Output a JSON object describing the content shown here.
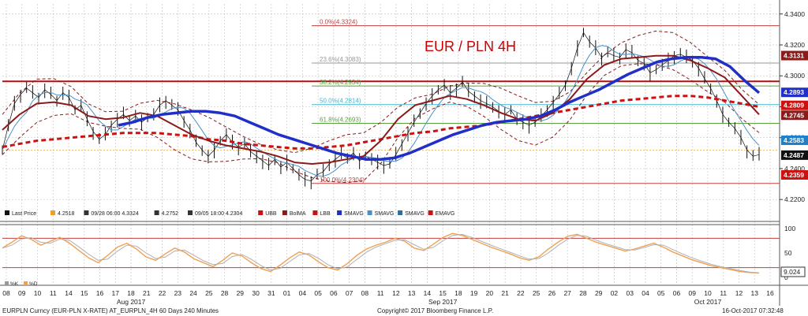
{
  "chart_data": {
    "type": "line",
    "title": "EUR / PLN 4H",
    "instrument_footer": "EURPLN Curncy (EUR-PLN X-RATE) AT_EURPLN_4H 60 Days 240 Minutes",
    "copyright": "Copyright© 2017 Bloomberg Finance L.P.",
    "timestamp": "16-Oct-2017 07:32:48",
    "colors": {
      "title": "#cc0000",
      "sma_blue": "#1f2fc7",
      "bollinger_ma": "#8b1a1a",
      "ema_dashed": "#cc1111",
      "price": "#111111",
      "thin_blue_sma": "#4a90c8",
      "fib_red": "#c04040",
      "fib_green": "#5aa040",
      "fib_cyan": "#40b8d0",
      "osc_orange": "#f0a050"
    },
    "x_axis": {
      "days": [
        "08",
        "09",
        "10",
        "11",
        "14",
        "15",
        "16",
        "17",
        "18",
        "21",
        "22",
        "23",
        "24",
        "25",
        "28",
        "29",
        "30",
        "31",
        "01",
        "04",
        "05",
        "06",
        "07",
        "08",
        "11",
        "12",
        "13",
        "14",
        "15",
        "18",
        "19",
        "20",
        "21",
        "22",
        "25",
        "26",
        "27",
        "28",
        "29",
        "02",
        "03",
        "04",
        "05",
        "06",
        "09",
        "10",
        "11",
        "12",
        "13",
        "16"
      ],
      "months": [
        {
          "label": "Aug 2017",
          "day_index": 8
        },
        {
          "label": "Sep 2017",
          "day_index": 28
        },
        {
          "label": "Oct 2017",
          "day_index": 45
        }
      ]
    },
    "y_axis": {
      "ticks": [
        4.34,
        4.32,
        4.3,
        4.28,
        4.26,
        4.24,
        4.22
      ],
      "ylim": [
        4.2155,
        4.3465
      ]
    },
    "price_tags": [
      {
        "value": 4.3131,
        "label": "4.3131",
        "bg": "#8b1a1a"
      },
      {
        "value": 4.2893,
        "label": "4.2893",
        "bg": "#1f2fc7"
      },
      {
        "value": 4.2809,
        "label": "4.2809",
        "bg": "#cc1111"
      },
      {
        "value": 4.2745,
        "label": "4.2745",
        "bg": "#8b1a1a"
      },
      {
        "value": 4.2583,
        "label": "4.2583",
        "bg": "#1f7fc7"
      },
      {
        "value": 4.2487,
        "label": "4.2487",
        "bg": "#111111"
      },
      {
        "value": 4.2359,
        "label": "4.2359",
        "bg": "#cc1111"
      }
    ],
    "fib_levels": [
      {
        "label": "0.0%(4.3324)",
        "value": 4.3324,
        "color": "#c04040"
      },
      {
        "label": "23.6%(4.3083)",
        "value": 4.3083,
        "color": "#999999"
      },
      {
        "label": "38.2%(4.2934)",
        "value": 4.2934,
        "color": "#5aa040"
      },
      {
        "label": "50.0%(4.2814)",
        "value": 4.2814,
        "color": "#40b8d0"
      },
      {
        "label": "61.8%(4.2693)",
        "value": 4.2693,
        "color": "#5aa040"
      },
      {
        "label": "100.0%(4.2304)",
        "value": 4.2304,
        "color": "#c04040"
      }
    ],
    "resistance_line": 4.2964,
    "legend": [
      {
        "label": "Last Price",
        "color": "#111111"
      },
      {
        "label": "4.2518",
        "color": "#f0a020"
      },
      {
        "label": "09/28 06:00 4.3324",
        "color": "#333333"
      },
      {
        "label": "4.2752",
        "color": "#333333"
      },
      {
        "label": "09/05 18:00 4.2304",
        "color": "#333333"
      },
      {
        "label": "UBB",
        "color": "#cc1111"
      },
      {
        "label": "BolMA",
        "color": "#8b1a1a"
      },
      {
        "label": "LBB",
        "color": "#cc1111"
      },
      {
        "label": "SMAVG",
        "color": "#1f2fc7"
      },
      {
        "label": "SMAVG",
        "color": "#4a90c8"
      },
      {
        "label": "SMAVG",
        "color": "#2a6fa0"
      },
      {
        "label": "EMAVG",
        "color": "#cc1111"
      }
    ],
    "price_series": [
      4.252,
      4.268,
      4.282,
      4.288,
      4.292,
      4.289,
      4.286,
      4.291,
      4.288,
      4.284,
      4.289,
      4.286,
      4.278,
      4.281,
      4.272,
      4.264,
      4.259,
      4.262,
      4.268,
      4.272,
      4.275,
      4.271,
      4.274,
      4.27,
      4.273,
      4.275,
      4.281,
      4.284,
      4.281,
      4.278,
      4.271,
      4.265,
      4.257,
      4.252,
      4.248,
      4.252,
      4.258,
      4.262,
      4.257,
      4.254,
      4.256,
      4.251,
      4.248,
      4.245,
      4.242,
      4.246,
      4.241,
      4.244,
      4.24,
      4.236,
      4.233,
      4.232,
      4.236,
      4.238,
      4.243,
      4.246,
      4.249,
      4.247,
      4.25,
      4.245,
      4.248,
      4.246,
      4.244,
      4.242,
      4.243,
      4.249,
      4.256,
      4.263,
      4.27,
      4.276,
      4.282,
      4.287,
      4.291,
      4.294,
      4.289,
      4.292,
      4.296,
      4.29,
      4.287,
      4.284,
      4.282,
      4.28,
      4.277,
      4.275,
      4.278,
      4.272,
      4.27,
      4.268,
      4.27,
      4.274,
      4.278,
      4.283,
      4.288,
      4.294,
      4.305,
      4.318,
      4.328,
      4.322,
      4.318,
      4.312,
      4.315,
      4.313,
      4.312,
      4.317,
      4.315,
      4.31,
      4.308,
      4.302,
      4.304,
      4.307,
      4.31,
      4.313,
      4.314,
      4.312,
      4.31,
      4.305,
      4.298,
      4.292,
      4.284,
      4.275,
      4.27,
      4.266,
      4.26,
      4.252,
      4.248,
      4.249
    ],
    "sma_blue": [
      4.268,
      4.27,
      4.273,
      4.275,
      4.276,
      4.277,
      4.277,
      4.276,
      4.274,
      4.27,
      4.266,
      4.262,
      4.259,
      4.256,
      4.253,
      4.25,
      4.248,
      4.246,
      4.246,
      4.247,
      4.25,
      4.254,
      4.258,
      4.262,
      4.265,
      4.268,
      4.27,
      4.271,
      4.272,
      4.274,
      4.278,
      4.283,
      4.287,
      4.291,
      4.296,
      4.301,
      4.305,
      4.309,
      4.311,
      4.312,
      4.312,
      4.311,
      4.306,
      4.297,
      4.289
    ],
    "bol_ma": [
      4.265,
      4.275,
      4.282,
      4.283,
      4.281,
      4.274,
      4.272,
      4.273,
      4.276,
      4.274,
      4.268,
      4.262,
      4.258,
      4.255,
      4.253,
      4.251,
      4.248,
      4.244,
      4.243,
      4.244,
      4.246,
      4.248,
      4.258,
      4.272,
      4.281,
      4.284,
      4.287,
      4.285,
      4.281,
      4.276,
      4.272,
      4.271,
      4.276,
      4.285,
      4.298,
      4.307,
      4.311,
      4.312,
      4.313,
      4.313,
      4.31,
      4.305,
      4.299,
      4.287,
      4.275
    ],
    "ema_dashed": [
      4.254,
      4.256,
      4.258,
      4.259,
      4.26,
      4.261,
      4.262,
      4.263,
      4.263,
      4.263,
      4.262,
      4.261,
      4.259,
      4.258,
      4.256,
      4.255,
      4.254,
      4.253,
      4.253,
      4.254,
      4.255,
      4.257,
      4.259,
      4.261,
      4.263,
      4.264,
      4.266,
      4.267,
      4.268,
      4.27,
      4.272,
      4.274,
      4.276,
      4.278,
      4.28,
      4.282,
      4.284,
      4.285,
      4.286,
      4.287,
      4.287,
      4.286,
      4.284,
      4.282,
      4.28
    ],
    "oscillator": {
      "yticks": [
        100,
        50,
        0
      ],
      "reference_lines": [
        80,
        20
      ],
      "last_value_label": "9.024",
      "legend_k": "%K",
      "legend_d": "%D",
      "series": [
        60,
        72,
        85,
        78,
        66,
        74,
        82,
        70,
        55,
        40,
        30,
        45,
        62,
        70,
        58,
        42,
        35,
        48,
        60,
        52,
        38,
        30,
        22,
        35,
        50,
        44,
        30,
        18,
        12,
        25,
        40,
        52,
        46,
        32,
        20,
        15,
        28,
        45,
        58,
        66,
        72,
        80,
        74,
        60,
        55,
        68,
        82,
        90,
        86,
        78,
        70,
        62,
        55,
        48,
        40,
        35,
        42,
        58,
        72,
        84,
        88,
        80,
        72,
        66,
        60,
        54,
        58,
        64,
        70,
        62,
        52,
        44,
        36,
        30,
        24,
        20,
        16,
        12,
        10,
        9
      ]
    }
  }
}
